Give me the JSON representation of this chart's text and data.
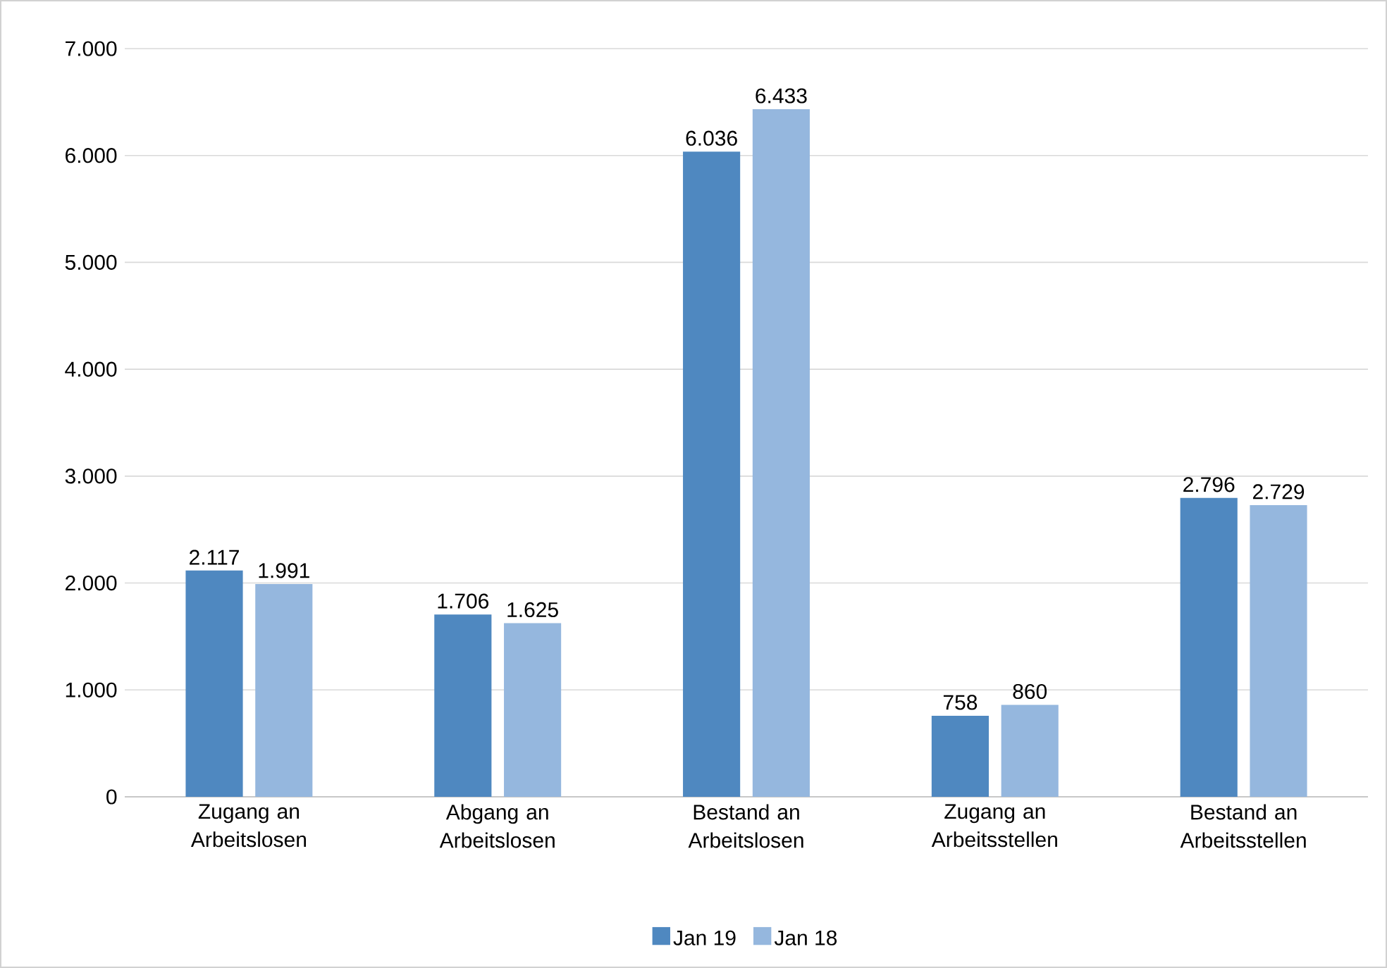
{
  "chart_data": {
    "type": "bar",
    "categories": [
      "Zugang an Arbeitslosen",
      "Abgang an Arbeitslosen",
      "Bestand an Arbeitslosen",
      "Zugang an Arbeitsstellen",
      "Bestand an Arbeitsstellen"
    ],
    "series": [
      {
        "name": "Jan 19",
        "color": "#4f88c0",
        "values": [
          2117,
          1706,
          6036,
          758,
          2796
        ],
        "value_labels": [
          "2.117",
          "1.706",
          "6.036",
          "758",
          "2.796"
        ]
      },
      {
        "name": "Jan 18",
        "color": "#95b7de",
        "values": [
          1991,
          1625,
          6433,
          860,
          2729
        ],
        "value_labels": [
          "1.991",
          "1.625",
          "6.433",
          "860",
          "2.729"
        ]
      }
    ],
    "ylim": [
      0,
      7000
    ],
    "yticks": [
      0,
      {
        "value": 1000,
        "label": "1.000"
      },
      {
        "value": 2000,
        "label": "2.000"
      },
      {
        "value": 3000,
        "label": "3.000"
      },
      {
        "value": 4000,
        "label": "4.000"
      },
      {
        "value": 5000,
        "label": "5.000"
      },
      {
        "value": 6000,
        "label": "6.000"
      },
      {
        "value": 7000,
        "label": "7.000"
      }
    ],
    "grid": "y",
    "legend": "bottom"
  }
}
